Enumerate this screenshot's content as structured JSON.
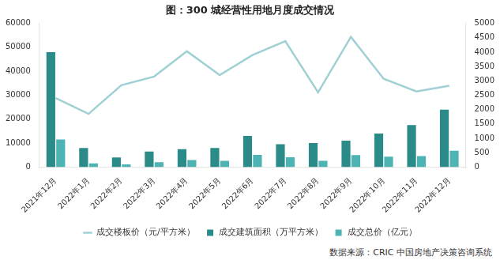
{
  "chart_data": {
    "type": "bar",
    "title": "图：300 城经营性用地月度成交情况",
    "source": "数据来源：CRIC 中国房地产决策咨询系统",
    "categories": [
      "2021年12月",
      "2022年1月",
      "2022年2月",
      "2022年3月",
      "2022年4月",
      "2022年5月",
      "2022年6月",
      "2022年7月",
      "2022年8月",
      "2022年9月",
      "2022年10月",
      "2022年11月",
      "2022年12月"
    ],
    "series": [
      {
        "name": "成交建筑面积（万平方米）",
        "type": "bar",
        "color": "#2b8b88",
        "values": [
          48000,
          8000,
          4000,
          6500,
          7500,
          8000,
          13000,
          9500,
          10000,
          11000,
          14000,
          17500,
          24000
        ]
      },
      {
        "name": "成交总价（亿元）",
        "type": "bar",
        "color": "#4eb3b3",
        "values": [
          11500,
          1500,
          1100,
          2000,
          2900,
          2600,
          5100,
          4100,
          2600,
          5000,
          4300,
          4600,
          6800
        ]
      },
      {
        "name": "成交楼板价（元/平方米）",
        "type": "line",
        "color": "#9fd0d4",
        "axis": "y2",
        "marker": "none",
        "values": [
          2400,
          1850,
          2850,
          3150,
          4030,
          3200,
          3900,
          4380,
          2600,
          4530,
          3070,
          2630,
          2830
        ]
      }
    ],
    "ylim": [
      0,
      60000
    ],
    "yticks": [
      0,
      10000,
      20000,
      30000,
      40000,
      50000,
      60000
    ],
    "y2lim": [
      0,
      5000
    ],
    "y2ticks": [
      0,
      500,
      1000,
      1500,
      2000,
      2500,
      3000,
      3500,
      4000,
      4500,
      5000
    ],
    "grid": false,
    "legend": "bottom"
  }
}
